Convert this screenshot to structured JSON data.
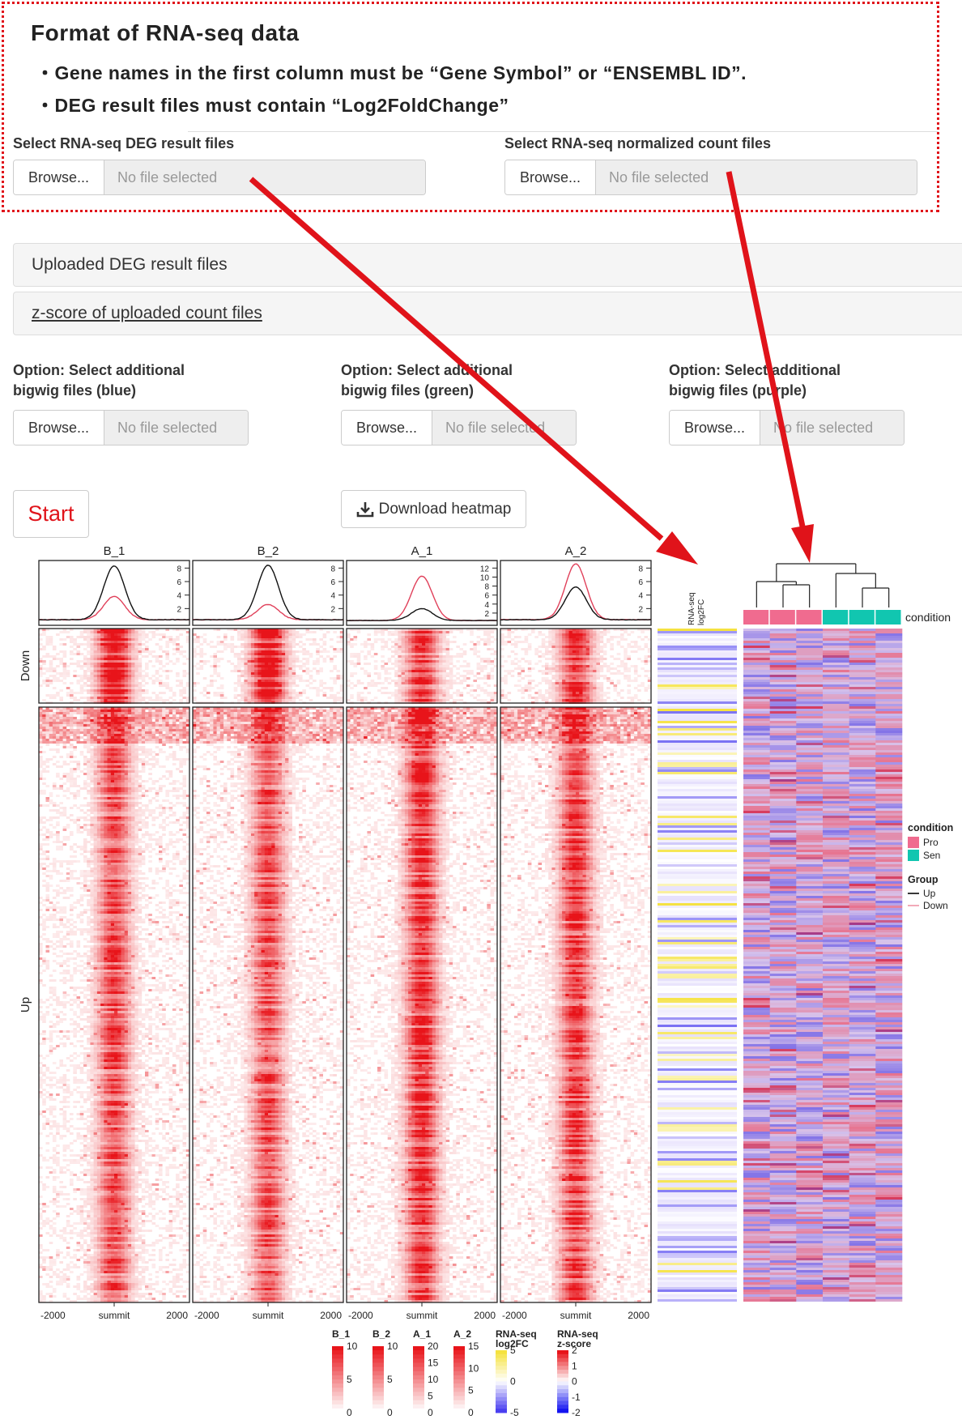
{
  "format_box": {
    "title": "Format of RNA-seq data",
    "lines": [
      "・Gene names in the first column must be “Gene Symbol” or “ENSEMBL ID”.",
      "・DEG result files must contain “Log2FoldChange”"
    ]
  },
  "inputs": {
    "deg": {
      "label": "Select RNA-seq DEG result files",
      "button": "Browse...",
      "placeholder": "No file selected"
    },
    "count": {
      "label": "Select RNA-seq normalized count files",
      "button": "Browse...",
      "placeholder": "No file selected"
    }
  },
  "panels": {
    "deg_files": "Uploaded DEG result files",
    "zscore": "z-score of uploaded count files"
  },
  "bigwig": [
    {
      "label1": "Option: Select additional",
      "label2": "bigwig files (blue)",
      "button": "Browse...",
      "placeholder": "No file selected"
    },
    {
      "label1": "Option: Select additional",
      "label2": "bigwig files (green)",
      "button": "Browse...",
      "placeholder": "No file selected"
    },
    {
      "label1": "Option: Select additional",
      "label2": "bigwig files (purple)",
      "button": "Browse...",
      "placeholder": "No file selected"
    }
  ],
  "actions": {
    "start": "Start",
    "download": "Download heatmap"
  },
  "colors": {
    "callout": "#e0131a",
    "heat": "#e8141a",
    "pro": "#f06b8f",
    "sen": "#11c6b0",
    "up_fc": "#f5e23f",
    "down_fc": "#4a3ff0"
  },
  "chart_data": {
    "type": "heatmap",
    "samples": [
      "B_1",
      "B_2",
      "A_1",
      "A_2"
    ],
    "profile_ticks": [
      [
        "2",
        "4",
        "6",
        "8"
      ],
      [
        "2",
        "4",
        "6",
        "8"
      ],
      [
        "2",
        "4",
        "6",
        "8",
        "10",
        "12"
      ],
      [
        "2",
        "4",
        "6",
        "8"
      ]
    ],
    "profile_peaks": {
      "B_1": {
        "black": 8.3,
        "red": 3.8
      },
      "B_2": {
        "black": 8.4,
        "red": 2.6
      },
      "A_1": {
        "black": 3.0,
        "red": 10.2
      },
      "A_2": {
        "black": 5.2,
        "red": 8.6
      }
    },
    "row_groups": [
      "Down",
      "Up"
    ],
    "x_ticks": [
      "-2000",
      "summit",
      "2000"
    ],
    "rnaseq_header": [
      "RNA-seq",
      "log2FC"
    ],
    "condition_label": "condition",
    "legend": {
      "condition_title": "condition",
      "conditions": [
        "Pro",
        "Sen"
      ],
      "group_title": "Group",
      "groups": [
        "Up",
        "Down"
      ]
    },
    "color_scales": [
      {
        "name": "B_1",
        "ticks": [
          "10",
          "5",
          "0"
        ]
      },
      {
        "name": "B_2",
        "ticks": [
          "10",
          "5",
          "0"
        ]
      },
      {
        "name": "A_1",
        "ticks": [
          "20",
          "15",
          "10",
          "5",
          "0"
        ]
      },
      {
        "name": "A_2",
        "ticks": [
          "15",
          "10",
          "5",
          "0"
        ]
      },
      {
        "name": "RNA-seq log2FC",
        "title1": "RNA-seq",
        "title2": "log2FC",
        "ticks": [
          "5",
          "0",
          "-5"
        ]
      },
      {
        "name": "RNA-seq z-score",
        "title1": "RNA-seq",
        "title2": "z-score",
        "ticks": [
          "2",
          "1",
          "0",
          "-1",
          "-2"
        ]
      }
    ]
  }
}
